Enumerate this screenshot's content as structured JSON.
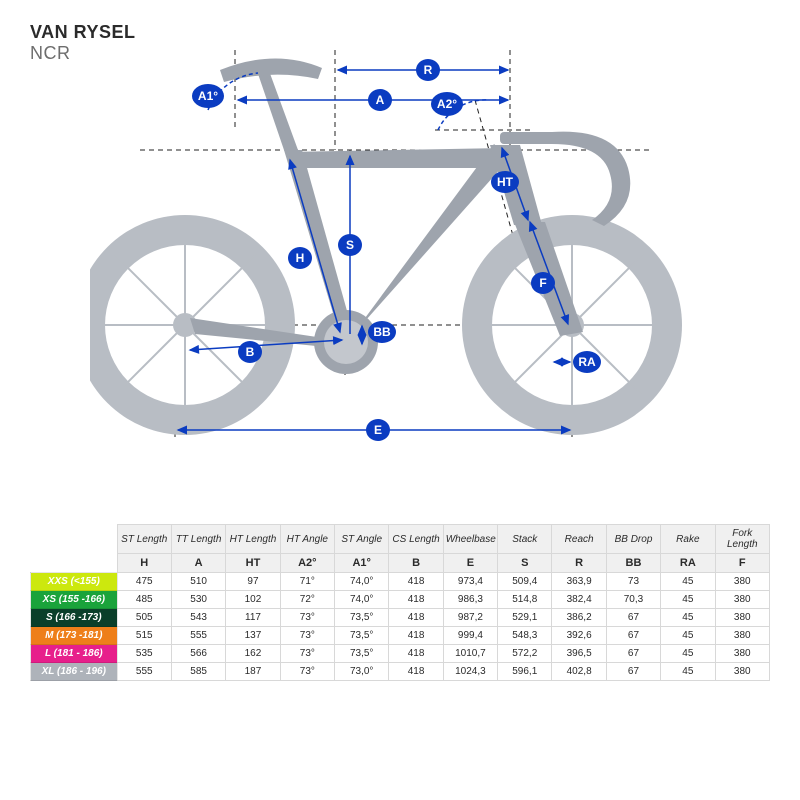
{
  "brand": "VAN RYSEL",
  "model": "NCR",
  "diagram": {
    "badge_fill": "#0b3cc1",
    "badge_text": "#ffffff",
    "bike_silhouette": "#b8bdc4",
    "bike_silhouette_dark": "#9ea4ad",
    "guide_color": "#222222",
    "dim_color": "#0b3cc1",
    "labels": {
      "A1": "A1°",
      "A2": "A2°",
      "R": "R",
      "A": "A",
      "HT": "HT",
      "H": "H",
      "S": "S",
      "BB": "BB",
      "F": "F",
      "RA": "RA",
      "B": "B",
      "E": "E"
    }
  },
  "table": {
    "col_titles": [
      "ST Length",
      "TT Length",
      "HT Length",
      "HT Angle",
      "ST Angle",
      "CS Length",
      "Wheelbase",
      "Stack",
      "Reach",
      "BB Drop",
      "Rake",
      "Fork Length"
    ],
    "col_symbols": [
      "H",
      "A",
      "HT",
      "A2°",
      "A1°",
      "B",
      "E",
      "S",
      "R",
      "BB",
      "RA",
      "F"
    ],
    "rows": [
      {
        "label": "XXS (<155)",
        "color": "#cce80e",
        "text": "#ffffff",
        "cells": [
          "475",
          "510",
          "97",
          "71°",
          "74,0°",
          "418",
          "973,4",
          "509,4",
          "363,9",
          "73",
          "45",
          "380"
        ]
      },
      {
        "label": "XS (155 -166)",
        "color": "#1aa33b",
        "text": "#ffffff",
        "cells": [
          "485",
          "530",
          "102",
          "72°",
          "74,0°",
          "418",
          "986,3",
          "514,8",
          "382,4",
          "70,3",
          "45",
          "380"
        ]
      },
      {
        "label": "S (166 -173)",
        "color": "#0a3f2a",
        "text": "#ffffff",
        "cells": [
          "505",
          "543",
          "117",
          "73°",
          "73,5°",
          "418",
          "987,2",
          "529,1",
          "386,2",
          "67",
          "45",
          "380"
        ]
      },
      {
        "label": "M (173 -181)",
        "color": "#ee7f1a",
        "text": "#ffffff",
        "cells": [
          "515",
          "555",
          "137",
          "73°",
          "73,5°",
          "418",
          "999,4",
          "548,3",
          "392,6",
          "67",
          "45",
          "380"
        ]
      },
      {
        "label": "L (181 - 186)",
        "color": "#e71f8b",
        "text": "#ffffff",
        "cells": [
          "535",
          "566",
          "162",
          "73°",
          "73,5°",
          "418",
          "1010,7",
          "572,2",
          "396,5",
          "67",
          "45",
          "380"
        ]
      },
      {
        "label": "XL (186 - 196)",
        "color": "#aeb3ba",
        "text": "#ffffff",
        "cells": [
          "555",
          "585",
          "187",
          "73°",
          "73,0°",
          "418",
          "1024,3",
          "596,1",
          "402,8",
          "67",
          "45",
          "380"
        ]
      }
    ]
  }
}
